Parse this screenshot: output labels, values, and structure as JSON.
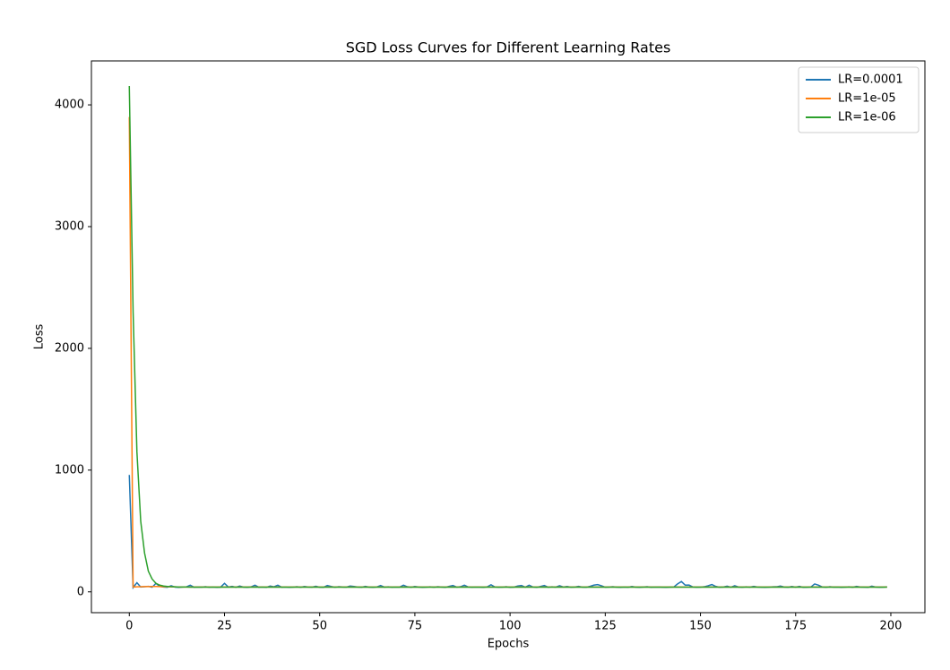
{
  "chart_data": {
    "type": "line",
    "title": "SGD Loss Curves for Different Learning Rates",
    "x_label": "Epochs",
    "y_label": "Loss",
    "x": [
      0,
      1,
      2,
      3,
      4,
      5,
      6,
      7,
      8,
      9,
      10,
      11,
      12,
      13,
      14,
      15,
      16,
      17,
      18,
      19,
      20,
      21,
      22,
      23,
      24,
      25,
      26,
      27,
      28,
      29,
      30,
      31,
      32,
      33,
      34,
      35,
      36,
      37,
      38,
      39,
      40,
      41,
      42,
      43,
      44,
      45,
      46,
      47,
      48,
      49,
      50,
      51,
      52,
      53,
      54,
      55,
      56,
      57,
      58,
      59,
      60,
      61,
      62,
      63,
      64,
      65,
      66,
      67,
      68,
      69,
      70,
      71,
      72,
      73,
      74,
      75,
      76,
      77,
      78,
      79,
      80,
      81,
      82,
      83,
      84,
      85,
      86,
      87,
      88,
      89,
      90,
      91,
      92,
      93,
      94,
      95,
      96,
      97,
      98,
      99,
      100,
      101,
      102,
      103,
      104,
      105,
      106,
      107,
      108,
      109,
      110,
      111,
      112,
      113,
      114,
      115,
      116,
      117,
      118,
      119,
      120,
      121,
      122,
      123,
      124,
      125,
      126,
      127,
      128,
      129,
      130,
      131,
      132,
      133,
      134,
      135,
      136,
      137,
      138,
      139,
      140,
      141,
      142,
      143,
      144,
      145,
      146,
      147,
      148,
      149,
      150,
      151,
      152,
      153,
      154,
      155,
      156,
      157,
      158,
      159,
      160,
      161,
      162,
      163,
      164,
      165,
      166,
      167,
      168,
      169,
      170,
      171,
      172,
      173,
      174,
      175,
      176,
      177,
      178,
      179,
      180,
      181,
      182,
      183,
      184,
      185,
      186,
      187,
      188,
      189,
      190,
      191,
      192,
      193,
      194,
      195,
      196,
      197,
      198,
      199
    ],
    "series": [
      {
        "name": "LR=0.0001",
        "color": "#1f77b4",
        "values": [
          960,
          35,
          75,
          40,
          42,
          45,
          38,
          70,
          45,
          40,
          38,
          50,
          39,
          37,
          40,
          41,
          55,
          38,
          40,
          39,
          42,
          38,
          40,
          37,
          39,
          70,
          40,
          45,
          38,
          48,
          39,
          37,
          41,
          55,
          38,
          40,
          37,
          48,
          42,
          55,
          38,
          40,
          37,
          39,
          42,
          38,
          44,
          40,
          39,
          46,
          38,
          37,
          52,
          44,
          38,
          42,
          40,
          39,
          48,
          44,
          40,
          38,
          45,
          39,
          37,
          40,
          52,
          39,
          41,
          38,
          40,
          39,
          55,
          42,
          38,
          44,
          40,
          37,
          39,
          41,
          38,
          42,
          40,
          37,
          45,
          52,
          39,
          42,
          55,
          40,
          38,
          40,
          39,
          37,
          41,
          58,
          40,
          38,
          39,
          42,
          37,
          39,
          48,
          52,
          38,
          55,
          40,
          37,
          44,
          52,
          38,
          41,
          39,
          50,
          40,
          44,
          38,
          40,
          45,
          39,
          38,
          45,
          55,
          60,
          50,
          38,
          40,
          42,
          39,
          37,
          40,
          38,
          44,
          39,
          37,
          40,
          42,
          38,
          39,
          40,
          38,
          37,
          39,
          40,
          65,
          85,
          55,
          56,
          40,
          38,
          39,
          42,
          50,
          60,
          45,
          38,
          40,
          47,
          38,
          50,
          40,
          38,
          41,
          39,
          45,
          40,
          38,
          37,
          39,
          41,
          42,
          48,
          40,
          38,
          44,
          39,
          45,
          37,
          38,
          40,
          65,
          55,
          40,
          38,
          42,
          39,
          40,
          37,
          39,
          41,
          38,
          45,
          40,
          39,
          37,
          47,
          40,
          38,
          39,
          41
        ]
      },
      {
        "name": "LR=1e-05",
        "color": "#ff7f0e",
        "values": [
          3900,
          40,
          41,
          42,
          43,
          43,
          44,
          44,
          43,
          42,
          42,
          41,
          41,
          40,
          40,
          40,
          40,
          40,
          40,
          40,
          40,
          40,
          40,
          40,
          40,
          40,
          40,
          40,
          40,
          40,
          40,
          40,
          40,
          40,
          40,
          40,
          40,
          40,
          40,
          40,
          40,
          40,
          40,
          40,
          40,
          40,
          40,
          40,
          40,
          40,
          40,
          40,
          40,
          40,
          40,
          40,
          40,
          40,
          40,
          40,
          40,
          40,
          40,
          40,
          40,
          40,
          40,
          40,
          40,
          40,
          40,
          40,
          40,
          40,
          40,
          40,
          40,
          40,
          40,
          40,
          40,
          40,
          40,
          40,
          40,
          40,
          40,
          40,
          40,
          40,
          40,
          40,
          40,
          40,
          40,
          40,
          40,
          40,
          40,
          40,
          40,
          40,
          40,
          40,
          40,
          40,
          40,
          40,
          40,
          40,
          40,
          40,
          40,
          40,
          40,
          40,
          40,
          40,
          40,
          40,
          40,
          40,
          40,
          40,
          40,
          40,
          40,
          40,
          40,
          40,
          40,
          40,
          40,
          40,
          40,
          40,
          40,
          40,
          40,
          40,
          40,
          40,
          40,
          40,
          40,
          40,
          40,
          40,
          40,
          40,
          40,
          40,
          40,
          40,
          40,
          40,
          40,
          40,
          40,
          40,
          40,
          40,
          40,
          40,
          40,
          40,
          40,
          40,
          40,
          40,
          40,
          40,
          40,
          40,
          40,
          40,
          40,
          40,
          40,
          40,
          40,
          40,
          40,
          40,
          40,
          40,
          40,
          40,
          40,
          40,
          40,
          40,
          40,
          40,
          40,
          40,
          40,
          40,
          40,
          40
        ]
      },
      {
        "name": "LR=1e-06",
        "color": "#2ca02c",
        "values": [
          4155,
          2300,
          1150,
          580,
          320,
          170,
          105,
          70,
          55,
          48,
          44,
          42,
          41,
          40,
          40,
          40,
          39,
          39,
          39,
          39,
          39,
          39,
          39,
          39,
          39,
          39,
          39,
          39,
          39,
          39,
          39,
          39,
          39,
          39,
          39,
          39,
          39,
          39,
          39,
          39,
          39,
          39,
          39,
          39,
          39,
          39,
          39,
          39,
          39,
          39,
          39,
          39,
          39,
          39,
          39,
          39,
          39,
          39,
          39,
          39,
          39,
          39,
          39,
          39,
          39,
          39,
          39,
          39,
          39,
          39,
          39,
          39,
          39,
          39,
          39,
          39,
          39,
          39,
          39,
          39,
          39,
          39,
          39,
          39,
          39,
          39,
          39,
          39,
          39,
          39,
          39,
          39,
          39,
          39,
          39,
          39,
          39,
          39,
          39,
          39,
          39,
          39,
          39,
          39,
          39,
          39,
          39,
          39,
          39,
          39,
          39,
          39,
          39,
          39,
          39,
          39,
          39,
          39,
          39,
          39,
          39,
          39,
          39,
          39,
          39,
          39,
          39,
          39,
          39,
          39,
          39,
          39,
          39,
          39,
          39,
          39,
          39,
          39,
          39,
          39,
          39,
          39,
          39,
          39,
          39,
          39,
          39,
          39,
          39,
          39,
          39,
          39,
          39,
          39,
          39,
          39,
          39,
          39,
          39,
          39,
          39,
          39,
          39,
          39,
          39,
          39,
          39,
          39,
          39,
          39,
          39,
          39,
          39,
          39,
          39,
          39,
          39,
          39,
          39,
          39,
          39,
          39,
          39,
          39,
          39,
          39,
          39,
          39,
          39,
          39,
          39,
          39,
          39,
          39,
          39,
          39,
          39,
          39,
          39,
          39
        ]
      }
    ],
    "xlim": [
      -9.95,
      208.95
    ],
    "ylim": [
      -171,
      4361
    ],
    "xticks": [
      0,
      25,
      50,
      75,
      100,
      125,
      150,
      175,
      200
    ],
    "yticks": [
      0,
      1000,
      2000,
      3000,
      4000
    ],
    "grid": false,
    "legend": "upper right"
  }
}
